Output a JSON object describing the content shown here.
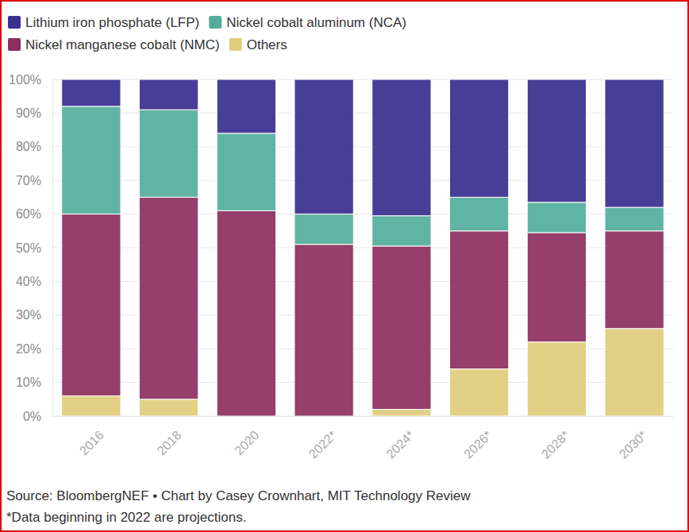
{
  "chart_data": {
    "type": "bar",
    "stacked": true,
    "grid": true,
    "legend": "top",
    "categories": [
      "2016",
      "2018",
      "2020",
      "2022*",
      "2024*",
      "2026*",
      "2028*",
      "2030*"
    ],
    "series": [
      {
        "name": "Lithium iron phosphate (LFP)",
        "color": "#3a2e8e",
        "values": [
          8,
          9,
          16,
          40,
          40.5,
          35,
          36.5,
          38
        ]
      },
      {
        "name": "Nickel cobalt aluminum (NCA)",
        "color": "#52ae9b",
        "values": [
          32,
          26,
          23,
          9,
          9,
          10,
          9,
          7
        ]
      },
      {
        "name": "Nickel manganese cobalt (NMC)",
        "color": "#8c2f5d",
        "values": [
          54,
          60,
          61,
          51,
          48.5,
          41,
          32.5,
          29
        ]
      },
      {
        "name": "Others",
        "color": "#e0cc7c",
        "values": [
          6,
          5,
          0,
          0,
          2,
          14,
          22,
          26
        ]
      }
    ],
    "ylim": [
      0,
      100
    ],
    "yticks": [
      {
        "value": 0,
        "label": "0%"
      },
      {
        "value": 10,
        "label": "10%"
      },
      {
        "value": 20,
        "label": "20%"
      },
      {
        "value": 30,
        "label": "30%"
      },
      {
        "value": 40,
        "label": "40%"
      },
      {
        "value": 50,
        "label": "50%"
      },
      {
        "value": 60,
        "label": "60%"
      },
      {
        "value": 70,
        "label": "70%"
      },
      {
        "value": 80,
        "label": "80%"
      },
      {
        "value": 90,
        "label": "90%"
      },
      {
        "value": 100,
        "label": "100%"
      }
    ],
    "annotations": [
      "Source: BloombergNEF • Chart by Casey Crownhart, MIT Technology Review",
      "*Data beginning in 2022 are projections."
    ]
  }
}
